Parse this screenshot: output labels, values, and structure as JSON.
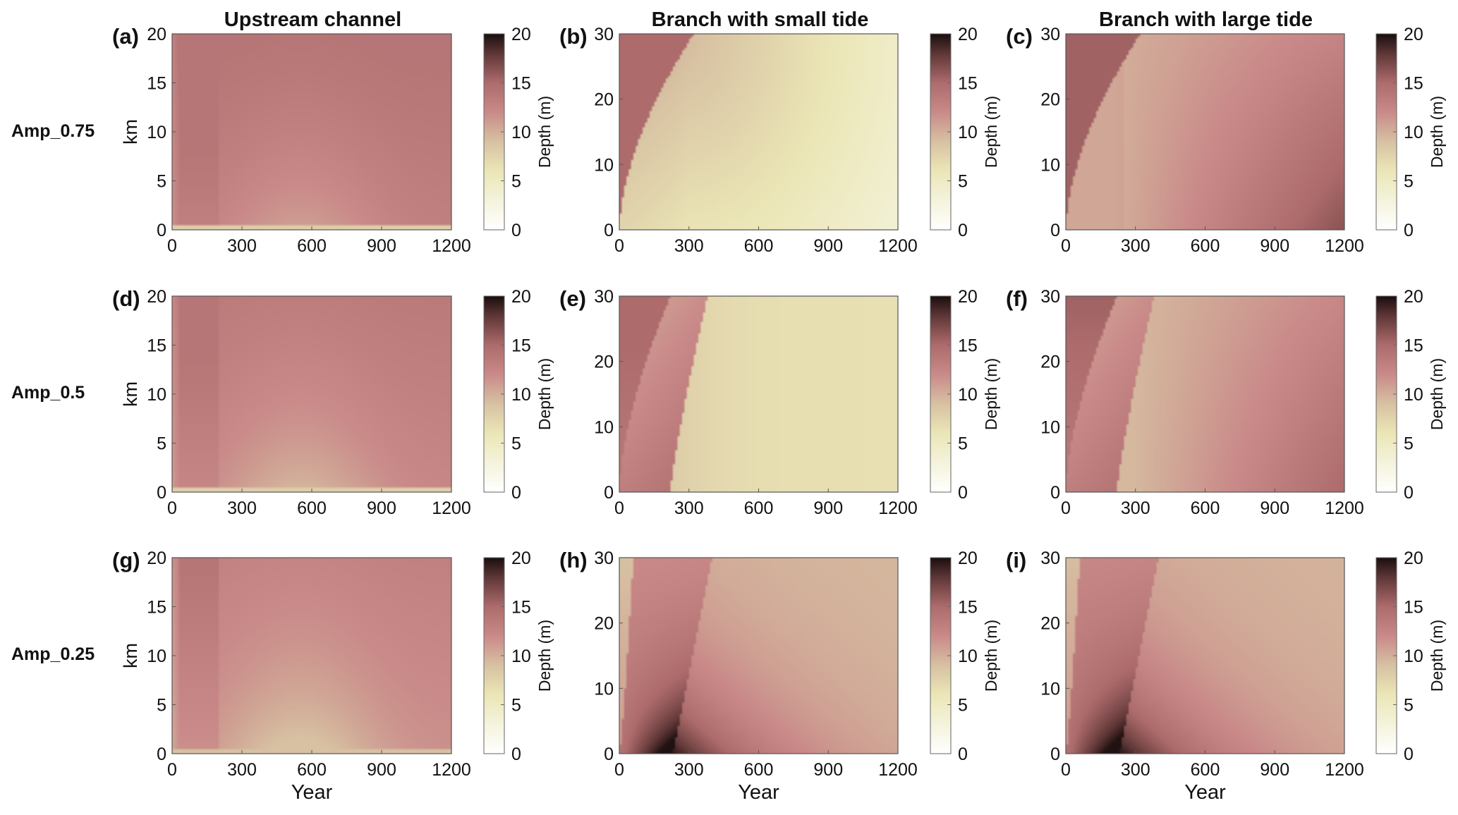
{
  "column_titles": [
    "Upstream channel",
    "Branch with small tide",
    "Branch with large tide"
  ],
  "row_labels": [
    "Amp_0.75",
    "Amp_0.5",
    "Amp_0.25"
  ],
  "chart_data": {
    "type": "heatmap",
    "xlabel": "Year",
    "xlim": [
      0,
      1200
    ],
    "xticks": [
      0,
      300,
      600,
      900,
      1200
    ],
    "colorbar": {
      "label": "Depth (m)",
      "range": [
        0,
        20
      ],
      "ticks": [
        0,
        5,
        10,
        15,
        20
      ]
    },
    "colormap": [
      [
        0,
        "#ffffff"
      ],
      [
        3,
        "#f4f3dc"
      ],
      [
        6,
        "#ebe6b6"
      ],
      [
        9,
        "#d7c1a2"
      ],
      [
        12,
        "#c98a89"
      ],
      [
        15,
        "#ad6b6c"
      ],
      [
        18,
        "#5e3636"
      ],
      [
        20,
        "#1a0e0e"
      ]
    ],
    "panels": [
      {
        "label": "(a)",
        "column": "Upstream channel",
        "row": "Amp_0.75",
        "ylabel": "km",
        "ylim": [
          0,
          20
        ],
        "yticks": [
          0,
          5,
          10,
          15,
          20
        ],
        "depth_range": [
          8,
          14
        ],
        "pattern": "upstream",
        "amp": 0.75
      },
      {
        "label": "(b)",
        "column": "Branch with small tide",
        "row": "Amp_0.75",
        "ylabel": "",
        "ylim": [
          0,
          30
        ],
        "yticks": [
          0,
          10,
          20,
          30
        ],
        "depth_range": [
          3,
          15
        ],
        "pattern": "branch_small",
        "amp": 0.75
      },
      {
        "label": "(c)",
        "column": "Branch with large tide",
        "row": "Amp_0.75",
        "ylabel": "",
        "ylim": [
          0,
          30
        ],
        "yticks": [
          0,
          10,
          20,
          30
        ],
        "depth_range": [
          9,
          17
        ],
        "pattern": "branch_large",
        "amp": 0.75
      },
      {
        "label": "(d)",
        "column": "Upstream channel",
        "row": "Amp_0.5",
        "ylabel": "km",
        "ylim": [
          0,
          20
        ],
        "yticks": [
          0,
          5,
          10,
          15,
          20
        ],
        "depth_range": [
          8,
          14
        ],
        "pattern": "upstream",
        "amp": 0.5
      },
      {
        "label": "(e)",
        "column": "Branch with small tide",
        "row": "Amp_0.5",
        "ylabel": "",
        "ylim": [
          0,
          30
        ],
        "yticks": [
          0,
          10,
          20,
          30
        ],
        "depth_range": [
          6,
          15
        ],
        "pattern": "branch_small",
        "amp": 0.5
      },
      {
        "label": "(f)",
        "column": "Branch with large tide",
        "row": "Amp_0.5",
        "ylabel": "",
        "ylim": [
          0,
          30
        ],
        "yticks": [
          0,
          10,
          20,
          30
        ],
        "depth_range": [
          9,
          16
        ],
        "pattern": "branch_large",
        "amp": 0.5
      },
      {
        "label": "(g)",
        "column": "Upstream channel",
        "row": "Amp_0.25",
        "ylabel": "km",
        "ylim": [
          0,
          20
        ],
        "yticks": [
          0,
          5,
          10,
          15,
          20
        ],
        "depth_range": [
          9,
          14
        ],
        "pattern": "upstream",
        "amp": 0.25
      },
      {
        "label": "(h)",
        "column": "Branch with small tide",
        "row": "Amp_0.25",
        "ylabel": "",
        "ylim": [
          0,
          30
        ],
        "yticks": [
          0,
          10,
          20,
          30
        ],
        "depth_range": [
          9,
          20
        ],
        "pattern": "branch_small",
        "amp": 0.25
      },
      {
        "label": "(i)",
        "column": "Branch with large tide",
        "row": "Amp_0.25",
        "ylabel": "",
        "ylim": [
          0,
          30
        ],
        "yticks": [
          0,
          10,
          20,
          30
        ],
        "depth_range": [
          9,
          20
        ],
        "pattern": "branch_large",
        "amp": 0.25
      }
    ]
  }
}
